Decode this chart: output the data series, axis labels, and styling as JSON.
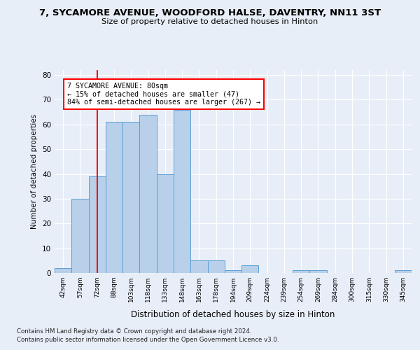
{
  "title1": "7, SYCAMORE AVENUE, WOODFORD HALSE, DAVENTRY, NN11 3ST",
  "title2": "Size of property relative to detached houses in Hinton",
  "xlabel": "Distribution of detached houses by size in Hinton",
  "ylabel": "Number of detached properties",
  "categories": [
    "42sqm",
    "57sqm",
    "72sqm",
    "88sqm",
    "103sqm",
    "118sqm",
    "133sqm",
    "148sqm",
    "163sqm",
    "178sqm",
    "194sqm",
    "209sqm",
    "224sqm",
    "239sqm",
    "254sqm",
    "269sqm",
    "284sqm",
    "300sqm",
    "315sqm",
    "330sqm",
    "345sqm"
  ],
  "values": [
    2,
    30,
    39,
    61,
    61,
    64,
    40,
    66,
    5,
    5,
    1,
    3,
    0,
    0,
    1,
    1,
    0,
    0,
    0,
    0,
    1
  ],
  "bar_color": "#b8d0ea",
  "bar_edge_color": "#5a9fd4",
  "annotation_text": "7 SYCAMORE AVENUE: 80sqm\n← 15% of detached houses are smaller (47)\n84% of semi-detached houses are larger (267) →",
  "annotation_box_color": "white",
  "annotation_box_edge": "red",
  "vline_color": "red",
  "vline_x": 2.03,
  "ylim": [
    0,
    82
  ],
  "yticks": [
    0,
    10,
    20,
    30,
    40,
    50,
    60,
    70,
    80
  ],
  "footer1": "Contains HM Land Registry data © Crown copyright and database right 2024.",
  "footer2": "Contains public sector information licensed under the Open Government Licence v3.0.",
  "background_color": "#e8eef8",
  "plot_bg_color": "#e8eef8",
  "grid_color": "#ffffff",
  "title1_fontsize": 9.5,
  "title2_fontsize": 8.5
}
